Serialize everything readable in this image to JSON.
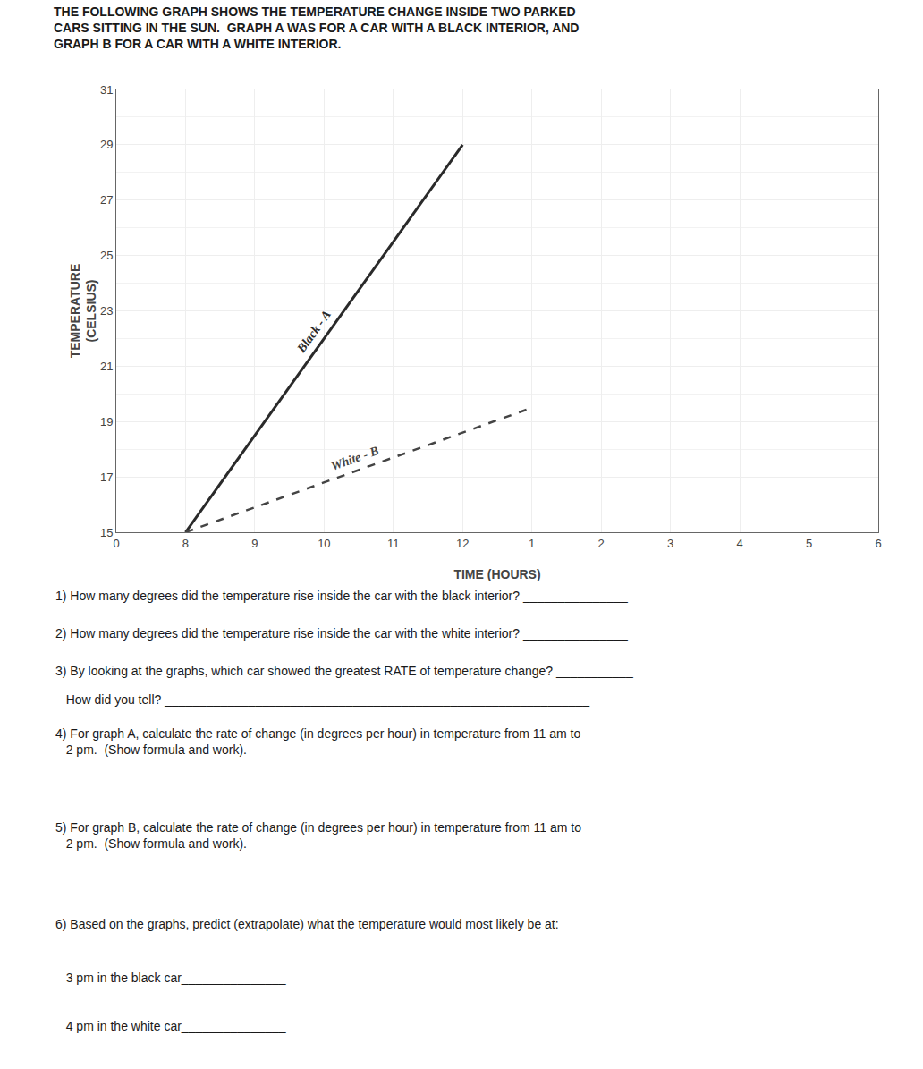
{
  "chart_data": {
    "type": "line",
    "title": "THE FOLLOWING GRAPH SHOWS THE TEMPERATURE CHANGE INSIDE TWO PARKED\nCARS SITTING IN THE SUN.  GRAPH A WAS FOR A CAR WITH A BLACK INTERIOR, AND\nGRAPH B FOR A CAR WITH A WHITE INTERIOR.",
    "xlabel": "TIME (HOURS)",
    "ylabel": "TEMPERATURE\n(CELSIUS)",
    "categories": [
      "0",
      "8",
      "9",
      "10",
      "11",
      "12",
      "1",
      "2",
      "3",
      "4",
      "5",
      "6"
    ],
    "series": [
      {
        "name": "Black - A",
        "color": "#2a2a2a",
        "line_style": "solid",
        "x": [
          "8",
          "12"
        ],
        "values": [
          15,
          29
        ]
      },
      {
        "name": "White - B",
        "color": "#444444",
        "line_style": "dash",
        "x": [
          "8",
          "1"
        ],
        "values": [
          15,
          19.5
        ]
      }
    ],
    "ylim": [
      15,
      31
    ],
    "yticks": [
      15,
      17,
      19,
      21,
      23,
      25,
      27,
      29,
      31
    ],
    "grid": true,
    "annotations": [
      "1) How many degrees did the temperature rise inside the car with the black interior? _______________",
      "2) How many degrees did the temperature rise inside the car with the white interior? _______________",
      "3) By looking at the graphs, which car showed the greatest RATE of temperature change? ___________",
      "   How did you tell? _____________________________________________________________",
      "4) For graph A, calculate the rate of change (in degrees per hour) in temperature from 11 am to\n   2 pm.  (Show formula and work).",
      "5) For graph B, calculate the rate of change (in degrees per hour) in temperature from 11 am to\n   2 pm.  (Show formula and work).",
      "6) Based on the graphs, predict (extrapolate) what the temperature would most likely be at:",
      "   3 pm in the black car_______________",
      "   4 pm in the white car_______________"
    ]
  }
}
